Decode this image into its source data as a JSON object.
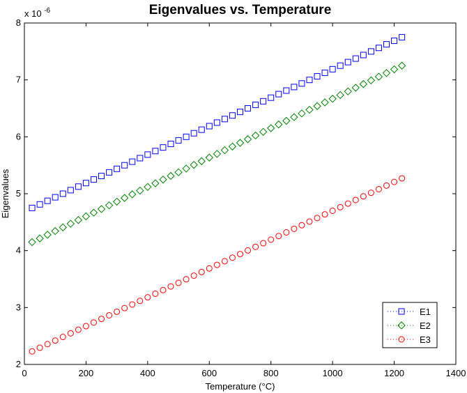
{
  "chart_data": {
    "type": "scatter",
    "title": "Eigenvalues vs. Temperature",
    "xlabel": "Temperature (°C)",
    "ylabel": "Eigenvalues",
    "y_multiplier_label": "x 10",
    "y_multiplier_exponent": "-6",
    "xlim": [
      0,
      1400
    ],
    "ylim": [
      2,
      8
    ],
    "x_ticks": [
      0,
      200,
      400,
      600,
      800,
      1000,
      1200,
      1400
    ],
    "y_ticks": [
      2,
      3,
      4,
      5,
      6,
      7,
      8
    ],
    "grid": false,
    "legend_position": "bottom-right",
    "x_start": 25,
    "x_end": 1225,
    "x_step": 25,
    "series": [
      {
        "name": "E1",
        "marker": "square",
        "color": "#0000ff",
        "y_start": 4.75,
        "y_end": 7.75
      },
      {
        "name": "E2",
        "marker": "diamond",
        "color": "#008000",
        "y_start": 4.15,
        "y_end": 7.25
      },
      {
        "name": "E3",
        "marker": "circle",
        "color": "#ff0000",
        "y_start": 2.23,
        "y_end": 5.27
      }
    ]
  }
}
